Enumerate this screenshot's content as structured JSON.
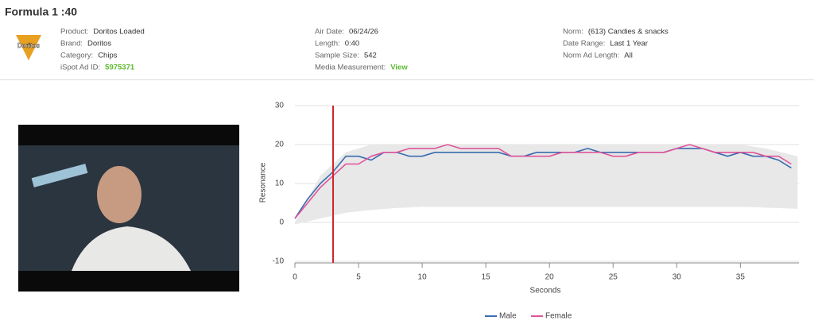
{
  "header": {
    "title": "Formula 1 :40",
    "logo": "Doritos",
    "fields": [
      {
        "label": "Product:",
        "value": "Doritos Loaded"
      },
      {
        "label": "Brand:",
        "value": "Doritos"
      },
      {
        "label": "Category:",
        "value": "Chips"
      },
      {
        "label": "iSpot Ad ID:",
        "value": "5975371",
        "link": true
      },
      {
        "label": "Air Date:",
        "value": "06/24/26"
      },
      {
        "label": "Length:",
        "value": "0:40"
      },
      {
        "label": "Sample Size:",
        "value": "542"
      },
      {
        "label": "Media Measurement:",
        "value": "View",
        "link": true
      },
      {
        "label": "Norm:",
        "value": "(613) Candies & snacks"
      },
      {
        "label": "Date Range:",
        "value": "Last 1 Year"
      },
      {
        "label": "Norm Ad Length:",
        "value": "All"
      }
    ]
  },
  "chart_data": {
    "type": "line",
    "x_label": "Seconds",
    "y_label": "Resonance",
    "xlim": [
      0,
      39.6
    ],
    "xticks": [
      0,
      5,
      10,
      15,
      20,
      25,
      30,
      35
    ],
    "ylim": [
      -10,
      30
    ],
    "yticks": [
      -10,
      0,
      10,
      20,
      30
    ],
    "grid": true,
    "marker_x": 3,
    "marker_color": "#d0232a",
    "band_color": "#e8e8e8",
    "band_x": [
      0,
      2,
      4,
      6,
      8,
      10,
      15,
      20,
      25,
      30,
      35,
      37,
      39.5
    ],
    "band_upper": [
      0,
      12,
      18,
      20,
      20,
      20,
      20,
      20,
      20,
      20,
      20,
      19,
      17
    ],
    "band_lower": [
      -0.5,
      1,
      2.5,
      3.2,
      3.7,
      4,
      4,
      4,
      4,
      4,
      4,
      3.8,
      3.5
    ],
    "x": [
      0,
      1,
      2,
      3,
      4,
      5,
      6,
      7,
      8,
      9,
      10,
      11,
      12,
      13,
      14,
      15,
      16,
      17,
      18,
      19,
      20,
      21,
      22,
      23,
      24,
      25,
      26,
      27,
      28,
      29,
      30,
      31,
      32,
      33,
      34,
      35,
      36,
      37,
      38,
      39
    ],
    "series": [
      {
        "name": "Male",
        "color": "#3a6db0",
        "values": [
          1,
          6,
          10,
          13,
          17,
          17,
          16,
          18,
          18,
          17,
          17,
          18,
          18,
          18,
          18,
          18,
          18,
          17,
          17,
          18,
          18,
          18,
          18,
          19,
          18,
          18,
          18,
          18,
          18,
          18,
          19,
          19,
          19,
          18,
          17,
          18,
          17,
          17,
          16,
          14
        ]
      },
      {
        "name": "Female",
        "color": "#e0559a",
        "values": [
          1,
          5,
          9,
          12,
          15,
          15,
          17,
          18,
          18,
          19,
          19,
          19,
          20,
          19,
          19,
          19,
          19,
          17,
          17,
          17,
          17,
          18,
          18,
          18,
          18,
          17,
          17,
          18,
          18,
          18,
          19,
          20,
          19,
          18,
          18,
          18,
          18,
          17,
          17,
          15
        ]
      }
    ]
  }
}
